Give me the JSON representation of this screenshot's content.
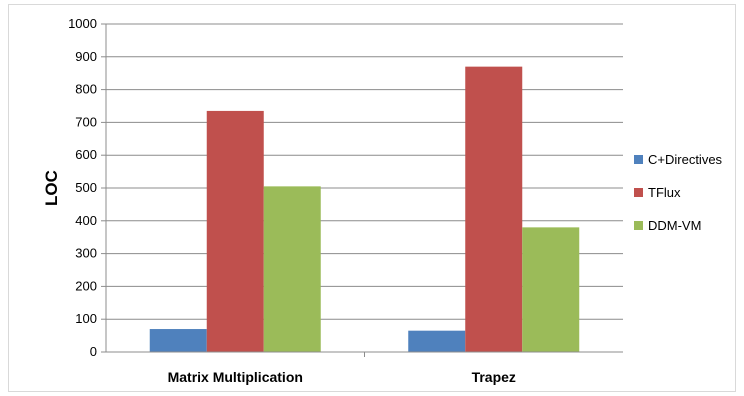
{
  "chart_data": {
    "type": "bar",
    "categories": [
      "Matrix Multiplication",
      "Trapez"
    ],
    "series": [
      {
        "name": "C+Directives",
        "values": [
          70,
          65
        ],
        "color": "#4f81bd"
      },
      {
        "name": "TFlux",
        "values": [
          735,
          870
        ],
        "color": "#c0504d"
      },
      {
        "name": "DDM-VM",
        "values": [
          505,
          380
        ],
        "color": "#9bbb59"
      }
    ],
    "title": "",
    "xlabel": "",
    "ylabel": "LOC",
    "ylim": [
      0,
      1000
    ],
    "yticks": [
      0,
      100,
      200,
      300,
      400,
      500,
      600,
      700,
      800,
      900,
      1000
    ],
    "grid": true,
    "legend_position": "right"
  }
}
